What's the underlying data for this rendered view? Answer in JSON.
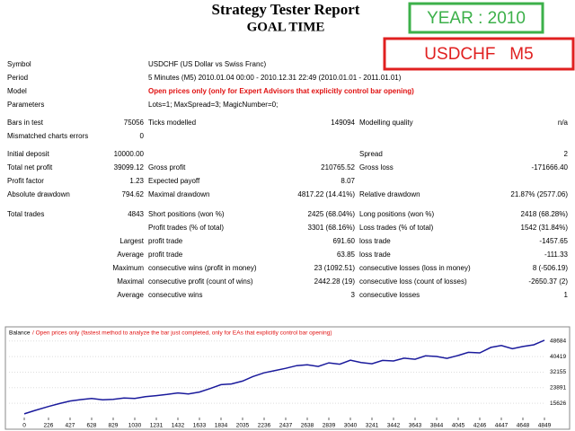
{
  "header": {
    "title": "Strategy Tester Report",
    "subtitle": "GOAL TIME"
  },
  "badges": {
    "year": "YEAR : 2010",
    "pair": "USDCHF   M5"
  },
  "info": [
    [
      "Symbol",
      "USDCHF (US Dollar vs Swiss Franc)"
    ],
    [
      "Period",
      "5 Minutes (M5) 2010.01.04 00:00 - 2010.12.31 22:49 (2010.01.01 - 2011.01.01)"
    ],
    [
      "Model",
      "Open prices only (only for Expert Advisors that explicitly control bar opening)"
    ],
    [
      "Parameters",
      "Lots=1; MaxSpread=3; MagicNumber=0;"
    ]
  ],
  "stats": [
    [
      "Bars in test",
      "75056",
      "Ticks modelled",
      "149094",
      "Modelling quality",
      "n/a"
    ],
    [
      "Mismatched charts errors",
      "0",
      null,
      null,
      null,
      null
    ],
    [
      "Initial deposit",
      "10000.00",
      null,
      null,
      "Spread",
      "2"
    ],
    [
      "Total net profit",
      "39099.12",
      "Gross profit",
      "210765.52",
      "Gross loss",
      "-171666.40"
    ],
    [
      "Profit factor",
      "1.23",
      "Expected payoff",
      "8.07",
      null,
      null
    ],
    [
      "Absolute drawdown",
      "794.62",
      "Maximal drawdown",
      "4817.22 (14.41%)",
      "Relative drawdown",
      "21.87% (2577.06)"
    ],
    [
      "Total trades",
      "4843",
      "Short positions (won %)",
      "2425 (68.04%)",
      "Long positions (won %)",
      "2418 (68.28%)"
    ],
    [
      null,
      null,
      "Profit trades (% of total)",
      "3301 (68.16%)",
      "Loss trades (% of total)",
      "1542 (31.84%)"
    ],
    [
      "Largest",
      null,
      "profit trade",
      "691.60",
      "loss trade",
      "-1457.65"
    ],
    [
      "Average",
      null,
      "profit trade",
      "63.85",
      "loss trade",
      "-111.33"
    ],
    [
      "Maximum",
      null,
      "consecutive wins (profit in money)",
      "23 (1092.51)",
      "consecutive losses (loss in money)",
      "8 (-506.19)"
    ],
    [
      "Maximal",
      null,
      "consecutive profit (count of wins)",
      "2442.28 (19)",
      "consecutive loss (count of losses)",
      "-2650.37 (2)"
    ],
    [
      "Average",
      null,
      "consecutive wins",
      "3",
      "consecutive losses",
      "1"
    ]
  ],
  "chart_data": {
    "type": "line",
    "title": "Balance",
    "subtitle": "/ Open prices only (fastest method to analyze the bar just completed, only for EAs that explicitly control bar opening)",
    "x": [
      0,
      100,
      226,
      330,
      427,
      530,
      628,
      730,
      829,
      930,
      1030,
      1130,
      1231,
      1330,
      1432,
      1530,
      1633,
      1730,
      1834,
      1930,
      2035,
      2130,
      2236,
      2330,
      2437,
      2540,
      2638,
      2740,
      2839,
      2940,
      3040,
      3140,
      3241,
      3340,
      3442,
      3540,
      3643,
      3740,
      3844,
      3940,
      4045,
      4140,
      4246,
      4350,
      4447,
      4550,
      4648,
      4750,
      4849
    ],
    "series": [
      {
        "name": "Balance",
        "color": "#1a1a9c",
        "values": [
          10000,
          11800,
          13900,
          15500,
          16800,
          17600,
          18200,
          17500,
          17700,
          18400,
          18200,
          19100,
          19700,
          20300,
          21100,
          20600,
          21600,
          23400,
          25500,
          25900,
          27400,
          29800,
          31800,
          32900,
          34200,
          35600,
          36100,
          35200,
          37100,
          36400,
          38500,
          37300,
          36600,
          38400,
          38100,
          39600,
          39000,
          40800,
          40500,
          39500,
          41000,
          42700,
          42400,
          45300,
          46300,
          44600,
          45800,
          46700,
          49099
        ]
      }
    ],
    "xlim": [
      0,
      4849
    ],
    "xticks": [
      0,
      226,
      427,
      628,
      829,
      1030,
      1231,
      1432,
      1633,
      1834,
      2035,
      2236,
      2437,
      2638,
      2839,
      3040,
      3241,
      3442,
      3643,
      3844,
      4045,
      4246,
      4447,
      4648,
      4849
    ],
    "ylim": [
      9000,
      50500
    ],
    "yticks": [
      48684,
      40419,
      32155,
      23891,
      15626
    ]
  }
}
